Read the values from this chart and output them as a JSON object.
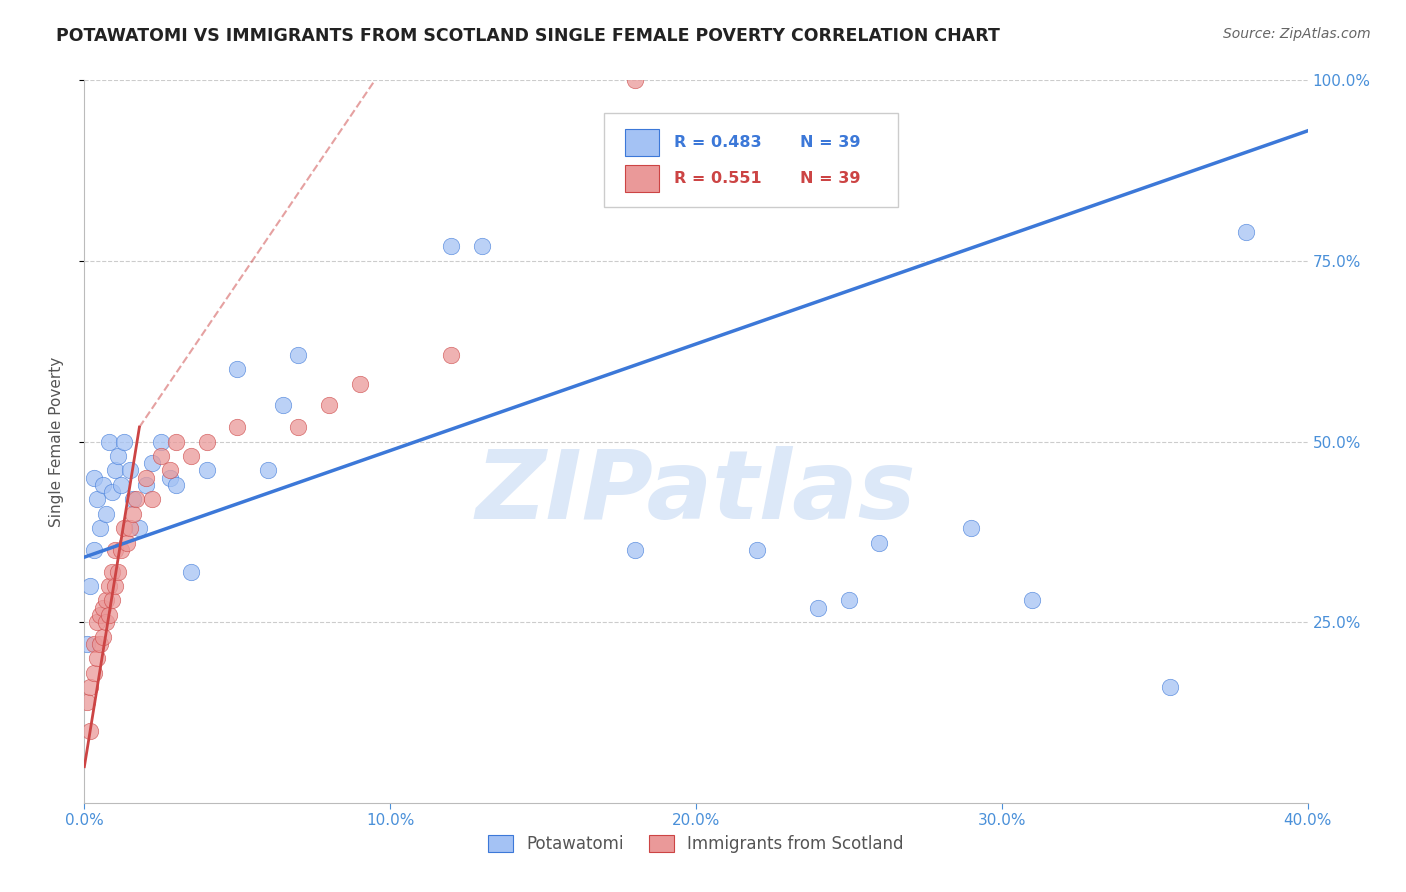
{
  "title": "POTAWATOMI VS IMMIGRANTS FROM SCOTLAND SINGLE FEMALE POVERTY CORRELATION CHART",
  "source": "Source: ZipAtlas.com",
  "ylabel": "Single Female Poverty",
  "legend_blue_R": "R = 0.483",
  "legend_blue_N": "N = 39",
  "legend_pink_R": "R = 0.551",
  "legend_pink_N": "N = 39",
  "legend_label_blue": "Potawatomi",
  "legend_label_pink": "Immigrants from Scotland",
  "blue_color": "#a4c2f4",
  "pink_color": "#ea9999",
  "trendline_blue_color": "#3c78d8",
  "trendline_pink_color": "#cc4444",
  "watermark_text": "ZIPatlas",
  "watermark_color": "#dce8f8",
  "blue_scatter_x": [
    0.001,
    0.002,
    0.003,
    0.003,
    0.004,
    0.005,
    0.006,
    0.007,
    0.008,
    0.009,
    0.01,
    0.011,
    0.012,
    0.013,
    0.015,
    0.016,
    0.018,
    0.02,
    0.022,
    0.025,
    0.028,
    0.03,
    0.035,
    0.04,
    0.05,
    0.06,
    0.065,
    0.07,
    0.12,
    0.13,
    0.18,
    0.22,
    0.24,
    0.25,
    0.26,
    0.29,
    0.31,
    0.355,
    0.38
  ],
  "blue_scatter_y": [
    0.22,
    0.3,
    0.35,
    0.45,
    0.42,
    0.38,
    0.44,
    0.4,
    0.5,
    0.43,
    0.46,
    0.48,
    0.44,
    0.5,
    0.46,
    0.42,
    0.38,
    0.44,
    0.47,
    0.5,
    0.45,
    0.44,
    0.32,
    0.46,
    0.6,
    0.46,
    0.55,
    0.62,
    0.77,
    0.77,
    0.35,
    0.35,
    0.27,
    0.28,
    0.36,
    0.38,
    0.28,
    0.16,
    0.79
  ],
  "pink_scatter_x": [
    0.001,
    0.002,
    0.002,
    0.003,
    0.003,
    0.004,
    0.004,
    0.005,
    0.005,
    0.006,
    0.006,
    0.007,
    0.007,
    0.008,
    0.008,
    0.009,
    0.009,
    0.01,
    0.01,
    0.011,
    0.012,
    0.013,
    0.014,
    0.015,
    0.016,
    0.017,
    0.02,
    0.022,
    0.025,
    0.028,
    0.03,
    0.035,
    0.04,
    0.05,
    0.07,
    0.08,
    0.09,
    0.12,
    0.18
  ],
  "pink_scatter_y": [
    0.14,
    0.1,
    0.16,
    0.18,
    0.22,
    0.2,
    0.25,
    0.22,
    0.26,
    0.23,
    0.27,
    0.25,
    0.28,
    0.26,
    0.3,
    0.28,
    0.32,
    0.3,
    0.35,
    0.32,
    0.35,
    0.38,
    0.36,
    0.38,
    0.4,
    0.42,
    0.45,
    0.42,
    0.48,
    0.46,
    0.5,
    0.48,
    0.5,
    0.52,
    0.52,
    0.55,
    0.58,
    0.62,
    1.0
  ],
  "blue_trend_x0": 0.0,
  "blue_trend_x1": 0.4,
  "blue_trend_y0": 0.34,
  "blue_trend_y1": 0.93,
  "pink_trend_x0": 0.0,
  "pink_trend_x1": 0.018,
  "pink_trend_y0": 0.05,
  "pink_trend_y1": 0.52,
  "pink_trend_dashed_x0": 0.018,
  "pink_trend_dashed_x1": 0.095,
  "pink_trend_dashed_y0": 0.52,
  "pink_trend_dashed_y1": 1.0,
  "xlim": [
    0.0,
    0.4
  ],
  "ylim": [
    0.0,
    1.0
  ],
  "xtick_vals": [
    0.0,
    0.1,
    0.2,
    0.3,
    0.4
  ],
  "xtick_labels": [
    "0.0%",
    "10.0%",
    "20.0%",
    "30.0%",
    "40.0%"
  ],
  "ytick_vals": [
    0.25,
    0.5,
    0.75,
    1.0
  ],
  "ytick_labels": [
    "25.0%",
    "50.0%",
    "75.0%",
    "100.0%"
  ],
  "background_color": "#ffffff",
  "grid_color": "#cccccc",
  "axis_color": "#4a90d9",
  "title_color": "#222222",
  "source_color": "#666666"
}
